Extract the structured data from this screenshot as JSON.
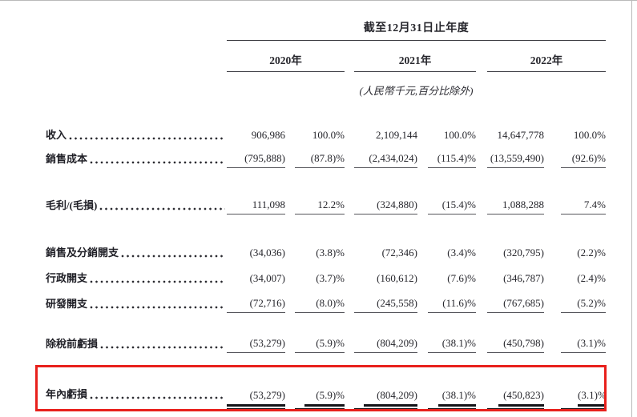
{
  "table": {
    "period_header": "截至12月31日止年度",
    "unit_note": "(人民幣千元,百分比除外)",
    "years": [
      "2020年",
      "2021年",
      "2022年"
    ],
    "sections": [
      {
        "rows": [
          {
            "label": "收入",
            "underline": "none",
            "values": [
              "906,986",
              "100.0%",
              "2,109,144",
              "100.0%",
              "14,647,778",
              "100.0%"
            ]
          },
          {
            "label": "銷售成本",
            "underline": "single",
            "values": [
              "(795,888)",
              "(87.8)%",
              "(2,434,024)",
              "(115.4)%",
              "(13,559,490)",
              "(92.6)%"
            ]
          }
        ]
      },
      {
        "rows": [
          {
            "label": "毛利/(毛損)",
            "underline": "single",
            "values": [
              "111,098",
              "12.2%",
              "(324,880)",
              "(15.4)%",
              "1,088,288",
              "7.4%"
            ]
          }
        ]
      },
      {
        "rows": [
          {
            "label": "銷售及分銷開支",
            "underline": "none",
            "values": [
              "(34,036)",
              "(3.8)%",
              "(72,346)",
              "(3.4)%",
              "(320,795)",
              "(2.2)%"
            ]
          },
          {
            "label": "行政開支",
            "underline": "none",
            "values": [
              "(34,007)",
              "(3.7)%",
              "(160,612)",
              "(7.6)%",
              "(346,787)",
              "(2.4)%"
            ]
          },
          {
            "label": "研發開支",
            "underline": "single",
            "values": [
              "(72,716)",
              "(8.0)%",
              "(245,558)",
              "(11.6)%",
              "(767,685)",
              "(5.2)%"
            ]
          }
        ]
      },
      {
        "rows": [
          {
            "label": "除稅前虧損",
            "underline": "single",
            "values": [
              "(53,279)",
              "(5.9)%",
              "(804,209)",
              "(38.1)%",
              "(450,798)",
              "(3.1)%"
            ]
          }
        ]
      },
      {
        "rows": [
          {
            "label": "年內虧損",
            "underline": "double",
            "highlighted": true,
            "values": [
              "(53,279)",
              "(5.9)%",
              "(804,209)",
              "(38.1)%",
              "(450,823)",
              "(3.1)%"
            ]
          }
        ]
      }
    ]
  },
  "highlight": {
    "color": "#e8201c"
  }
}
